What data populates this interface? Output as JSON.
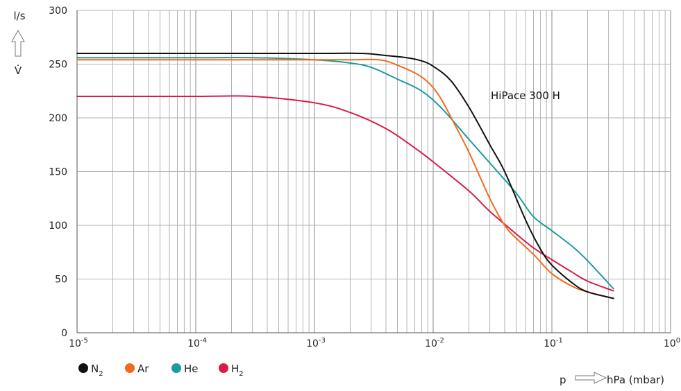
{
  "chart_data": {
    "type": "line",
    "title": "",
    "annotation": "HiPace 300 H",
    "x_scale": "log",
    "xlim": [
      1e-05,
      1
    ],
    "ylim": [
      0,
      300
    ],
    "y_ticks": [
      0,
      50,
      100,
      150,
      200,
      250,
      300
    ],
    "x_ticks": [
      {
        "base": "10",
        "exp": "-5"
      },
      {
        "base": "10",
        "exp": "-4"
      },
      {
        "base": "10",
        "exp": "-3"
      },
      {
        "base": "10",
        "exp": "-2"
      },
      {
        "base": "10",
        "exp": "-1"
      },
      {
        "base": "10",
        "exp": "0"
      }
    ],
    "ylabel_unit": "l/s",
    "ylabel_symbol": "V̇",
    "xlabel_symbol": "p",
    "xlabel_unit": "hPa (mbar)",
    "grid": true,
    "legend_position": "bottom-left",
    "series": [
      {
        "name": "N",
        "sub": "2",
        "color": "#111111",
        "x": [
          1e-05,
          0.0001,
          0.001,
          0.0025,
          0.004,
          0.006,
          0.008,
          0.01,
          0.014,
          0.02,
          0.03,
          0.04,
          0.06,
          0.08,
          0.1,
          0.15,
          0.2,
          0.33
        ],
        "y": [
          260,
          260,
          260,
          260,
          258,
          256,
          253,
          248,
          235,
          210,
          175,
          150,
          105,
          78,
          63,
          46,
          38,
          32
        ]
      },
      {
        "name": "Ar",
        "sub": "",
        "color": "#f26a1b",
        "x": [
          1e-05,
          0.0001,
          0.001,
          0.002,
          0.0035,
          0.005,
          0.008,
          0.011,
          0.015,
          0.02,
          0.03,
          0.04,
          0.05,
          0.07,
          0.1,
          0.15,
          0.2,
          0.33
        ],
        "y": [
          254,
          254,
          254,
          254,
          254,
          249,
          238,
          222,
          195,
          168,
          125,
          100,
          88,
          73,
          55,
          43,
          38,
          32
        ]
      },
      {
        "name": "He",
        "sub": "",
        "color": "#1c9c9c",
        "x": [
          1e-05,
          0.0001,
          0.0003,
          0.001,
          0.002,
          0.003,
          0.005,
          0.008,
          0.012,
          0.02,
          0.03,
          0.05,
          0.07,
          0.1,
          0.15,
          0.2,
          0.33
        ],
        "y": [
          256,
          256,
          256,
          254,
          251,
          247,
          236,
          225,
          208,
          180,
          158,
          130,
          108,
          95,
          80,
          67,
          41
        ]
      },
      {
        "name": "H",
        "sub": "2",
        "color": "#d81b4a",
        "x": [
          1e-05,
          0.0001,
          0.0003,
          0.001,
          0.002,
          0.004,
          0.007,
          0.01,
          0.02,
          0.03,
          0.05,
          0.07,
          0.1,
          0.15,
          0.2,
          0.33
        ],
        "y": [
          220,
          220,
          220,
          214,
          205,
          190,
          172,
          159,
          132,
          113,
          92,
          79,
          68,
          56,
          48,
          39
        ]
      }
    ]
  }
}
